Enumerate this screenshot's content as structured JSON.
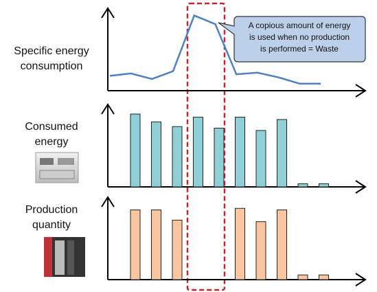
{
  "chart_data": [
    {
      "type": "line",
      "label": [
        "Specific energy",
        "consumption"
      ],
      "color": "#4f7fc4",
      "values": [
        19,
        22,
        15,
        25,
        96,
        85,
        21,
        23,
        17,
        9,
        9
      ],
      "ylim": [
        0,
        100
      ],
      "annotation": [
        "A copious amount of energy",
        "is used when no production",
        "is performed = Waste"
      ]
    },
    {
      "type": "bar",
      "label": [
        "Consumed",
        "energy"
      ],
      "color": "#8fcfd8",
      "values": [
        93,
        83,
        77,
        89,
        75,
        89,
        72,
        86,
        4,
        4
      ],
      "ylim": [
        0,
        100
      ]
    },
    {
      "type": "bar",
      "label": [
        "Production",
        "quantity"
      ],
      "color": "#f9c6a0",
      "values": [
        89,
        89,
        76,
        null,
        null,
        91,
        74,
        89,
        6,
        6
      ],
      "ylim": [
        0,
        100
      ]
    }
  ]
}
